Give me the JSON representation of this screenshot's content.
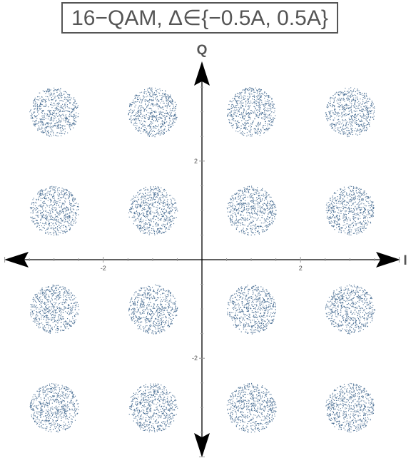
{
  "chart_data": {
    "type": "scatter",
    "title": "16−QAM, Δ∈{−0.5A, 0.5A}",
    "xlabel": "I",
    "ylabel": "Q",
    "xlim": [
      -4.1,
      4.1
    ],
    "ylim": [
      -4.1,
      3.9
    ],
    "xticks": [
      {
        "value": -2,
        "label": "-2"
      },
      {
        "value": 2,
        "label": "2"
      }
    ],
    "yticks": [
      {
        "value": 2,
        "label": "2"
      },
      {
        "value": -2,
        "label": "-2"
      }
    ],
    "grid": false,
    "marker_color": "#4a6f94",
    "constellation_points": {
      "i": [
        -3,
        -1,
        1,
        3
      ],
      "q": [
        -3,
        -1,
        1,
        3
      ]
    },
    "noise_radius": 0.5,
    "points_per_cluster": 650
  }
}
